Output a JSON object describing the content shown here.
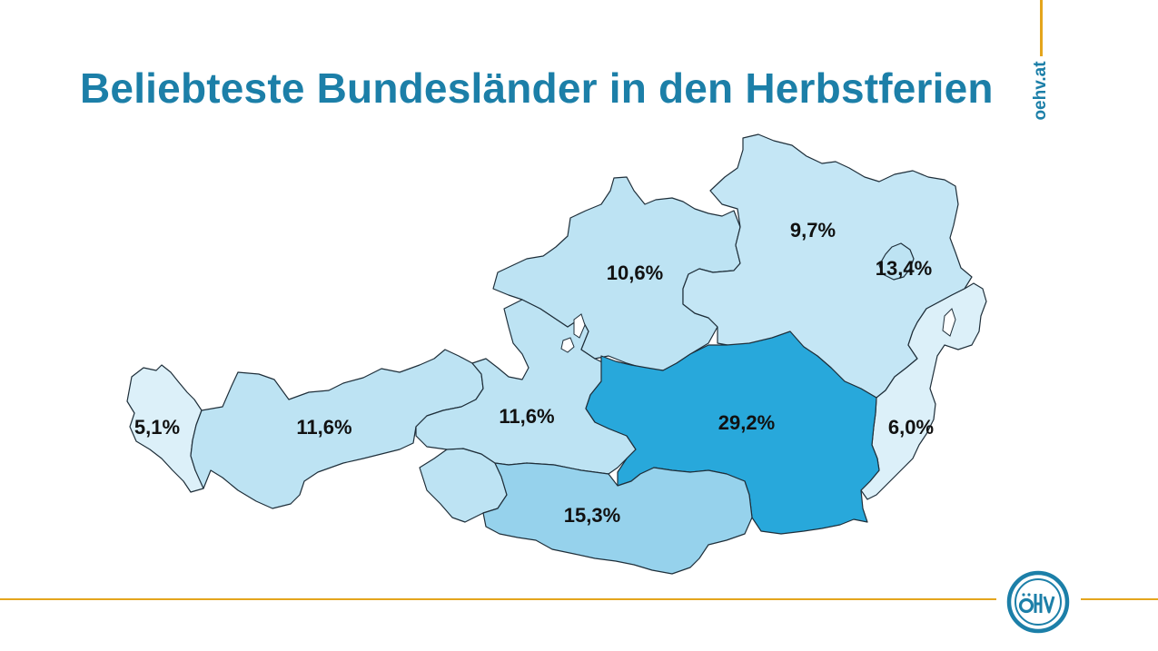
{
  "title": "Beliebteste Bundesländer in den Herbstferien",
  "brand": "oehv.at",
  "logo_text": "ÖHV",
  "colors": {
    "title": "#1c7fa8",
    "accent_line": "#e4a51d",
    "region_light": "#d9eef8",
    "region_mid": "#bde3f3",
    "region_mid2": "#96d2ec",
    "region_dark": "#28a8db"
  },
  "regions": [
    {
      "id": "vorarlberg",
      "label": "5,1%",
      "color": "#dcf0f9"
    },
    {
      "id": "tirol",
      "label": "11,6%",
      "color": "#bde3f3"
    },
    {
      "id": "salzburg",
      "label": "11,6%",
      "color": "#bde3f3"
    },
    {
      "id": "oberoesterreich",
      "label": "10,6%",
      "color": "#bde3f3"
    },
    {
      "id": "niederoesterreich",
      "label": "9,7%",
      "color": "#c4e6f5"
    },
    {
      "id": "wien",
      "label": "13,4%",
      "color": "#bde3f3"
    },
    {
      "id": "burgenland",
      "label": "6,0%",
      "color": "#dcf0f9"
    },
    {
      "id": "steiermark",
      "label": "29,2%",
      "color": "#28a8db"
    },
    {
      "id": "kaernten",
      "label": "15,3%",
      "color": "#96d2ec"
    },
    {
      "id": "osttirol",
      "label": "",
      "color": "#bde3f3"
    }
  ]
}
